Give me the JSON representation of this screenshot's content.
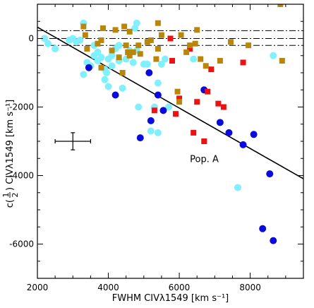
{
  "chart_data": {
    "type": "scatter",
    "title": "",
    "xlabel": "FWHM CIVλ1549 [km s⁻¹]",
    "ylabel_prefix": "c(",
    "ylabel_frac_num": "1",
    "ylabel_frac_den": "2",
    "ylabel_suffix": ") CIVλ1549 [km s⁻¹]",
    "xlim": [
      2000,
      9500
    ],
    "ylim": [
      -7000,
      1000
    ],
    "x_ticks": [
      2000,
      4000,
      6000,
      8000
    ],
    "y_ticks": [
      0,
      -2000,
      -4000,
      -6000
    ],
    "grid": false,
    "legend": "none",
    "colors": {
      "cyan_circles": "#80f0ff",
      "blue_circles": "#0a0adc",
      "red_squares": "#ee1111",
      "brown_squares": "#b8860b"
    },
    "series": [
      {
        "marker": "circle",
        "color_key": "cyan_circles",
        "points": [
          [
            2200,
            0
          ],
          [
            2300,
            -150
          ],
          [
            2500,
            -300
          ],
          [
            2900,
            -50
          ],
          [
            3000,
            0
          ],
          [
            3100,
            -100
          ],
          [
            3200,
            -50
          ],
          [
            3300,
            450
          ],
          [
            3400,
            -700
          ],
          [
            3500,
            -800
          ],
          [
            3300,
            -1050
          ],
          [
            3600,
            -500
          ],
          [
            3600,
            -200
          ],
          [
            3700,
            -400
          ],
          [
            3700,
            -650
          ],
          [
            3800,
            -550
          ],
          [
            3900,
            -1200
          ],
          [
            3900,
            -900
          ],
          [
            3950,
            -1000
          ],
          [
            4000,
            -600
          ],
          [
            4000,
            -1400
          ],
          [
            4100,
            -500
          ],
          [
            4100,
            -800
          ],
          [
            4200,
            -300
          ],
          [
            4300,
            -200
          ],
          [
            4300,
            -650
          ],
          [
            4400,
            -1450
          ],
          [
            4500,
            -600
          ],
          [
            4600,
            -350
          ],
          [
            4700,
            -700
          ],
          [
            4750,
            300
          ],
          [
            4800,
            450
          ],
          [
            4800,
            -350
          ],
          [
            4850,
            -2000
          ],
          [
            5000,
            -750
          ],
          [
            5100,
            -750
          ],
          [
            5200,
            -2700
          ],
          [
            5300,
            -2000
          ],
          [
            5400,
            -1300
          ],
          [
            5400,
            -2750
          ],
          [
            5500,
            -750
          ],
          [
            5600,
            -600
          ],
          [
            5700,
            -2000
          ],
          [
            6400,
            -600
          ],
          [
            6700,
            -1500
          ],
          [
            7650,
            -4350
          ],
          [
            8650,
            -500
          ]
        ]
      },
      {
        "marker": "circle",
        "color_key": "blue_circles",
        "points": [
          [
            3450,
            -850
          ],
          [
            4200,
            -1650
          ],
          [
            4900,
            -2900
          ],
          [
            5150,
            -1000
          ],
          [
            5200,
            -2400
          ],
          [
            5400,
            -1650
          ],
          [
            5550,
            -2100
          ],
          [
            6700,
            -1500
          ],
          [
            7150,
            -2450
          ],
          [
            7400,
            -2750
          ],
          [
            7800,
            -3100
          ],
          [
            8100,
            -2800
          ],
          [
            8350,
            -5550
          ],
          [
            8550,
            -3950
          ],
          [
            8650,
            -5900
          ]
        ]
      },
      {
        "marker": "square",
        "color_key": "red_squares",
        "points": [
          [
            5300,
            -2100
          ],
          [
            5800,
            -650
          ],
          [
            5900,
            -2200
          ],
          [
            6000,
            -1750
          ],
          [
            6300,
            -300
          ],
          [
            6400,
            -2750
          ],
          [
            6500,
            -1850
          ],
          [
            6700,
            -3000
          ],
          [
            6800,
            -1550
          ],
          [
            6900,
            -900
          ],
          [
            7100,
            -1900
          ],
          [
            7250,
            -2000
          ],
          [
            7800,
            -700
          ],
          [
            5750,
            0
          ]
        ]
      },
      {
        "marker": "square",
        "color_key": "brown_squares",
        "points": [
          [
            3300,
            350
          ],
          [
            3350,
            100
          ],
          [
            3400,
            -300
          ],
          [
            3700,
            -150
          ],
          [
            3800,
            -50
          ],
          [
            3800,
            -850
          ],
          [
            3850,
            300
          ],
          [
            4100,
            -350
          ],
          [
            4200,
            250
          ],
          [
            4300,
            -550
          ],
          [
            4400,
            -1000
          ],
          [
            4450,
            350
          ],
          [
            4500,
            -200
          ],
          [
            4550,
            -400
          ],
          [
            4600,
            -500
          ],
          [
            4600,
            200
          ],
          [
            4700,
            -400
          ],
          [
            4850,
            -200
          ],
          [
            4900,
            -450
          ],
          [
            5100,
            -100
          ],
          [
            5200,
            -50
          ],
          [
            5350,
            -600
          ],
          [
            5400,
            450
          ],
          [
            5400,
            -300
          ],
          [
            5500,
            100
          ],
          [
            5950,
            -1550
          ],
          [
            6000,
            -1850
          ],
          [
            6050,
            100
          ],
          [
            6200,
            -400
          ],
          [
            6300,
            -200
          ],
          [
            6450,
            -150
          ],
          [
            6500,
            250
          ],
          [
            6600,
            -600
          ],
          [
            6750,
            -800
          ],
          [
            7150,
            -650
          ],
          [
            7450,
            -100
          ],
          [
            7950,
            -200
          ],
          [
            8850,
            1000
          ],
          [
            8900,
            -650
          ]
        ]
      }
    ],
    "fit_line": {
      "x": [
        2000,
        9500
      ],
      "y": [
        330,
        -4095
      ]
    },
    "reference_lines_y": [
      230,
      0,
      -200
    ],
    "error_bar": {
      "x": 3000,
      "y": -3000,
      "xerr": 500,
      "yerr": 250
    },
    "annotations": [
      {
        "text": "Pop. A",
        "x": 6300,
        "y": -3500
      }
    ]
  }
}
